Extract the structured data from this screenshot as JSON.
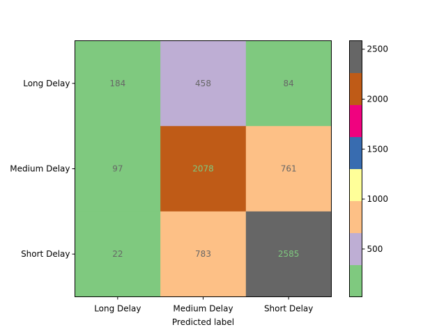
{
  "chart_data": {
    "type": "heatmap",
    "x_categories": [
      "Long Delay",
      "Medium Delay",
      "Short Delay"
    ],
    "y_categories": [
      "Long Delay",
      "Medium Delay",
      "Short Delay"
    ],
    "values": [
      [
        184,
        458,
        84
      ],
      [
        97,
        2078,
        761
      ],
      [
        22,
        783,
        2585
      ]
    ],
    "xlabel": "Predicted label",
    "ylabel": "",
    "colormap": "Accent",
    "color_range": [
      22,
      2585
    ],
    "colorbar": {
      "ticks": [
        500,
        1000,
        1500,
        2000,
        2500
      ],
      "bands": [
        "#7fc97f",
        "#beaed4",
        "#fdc086",
        "#ffff99",
        "#386cb0",
        "#f0027f",
        "#bf5b17",
        "#666666"
      ]
    },
    "annotation_colors": {
      "on_light": "#666666",
      "on_dark": "#7fc97f"
    },
    "grid": false,
    "legend": "colorbar-right"
  }
}
